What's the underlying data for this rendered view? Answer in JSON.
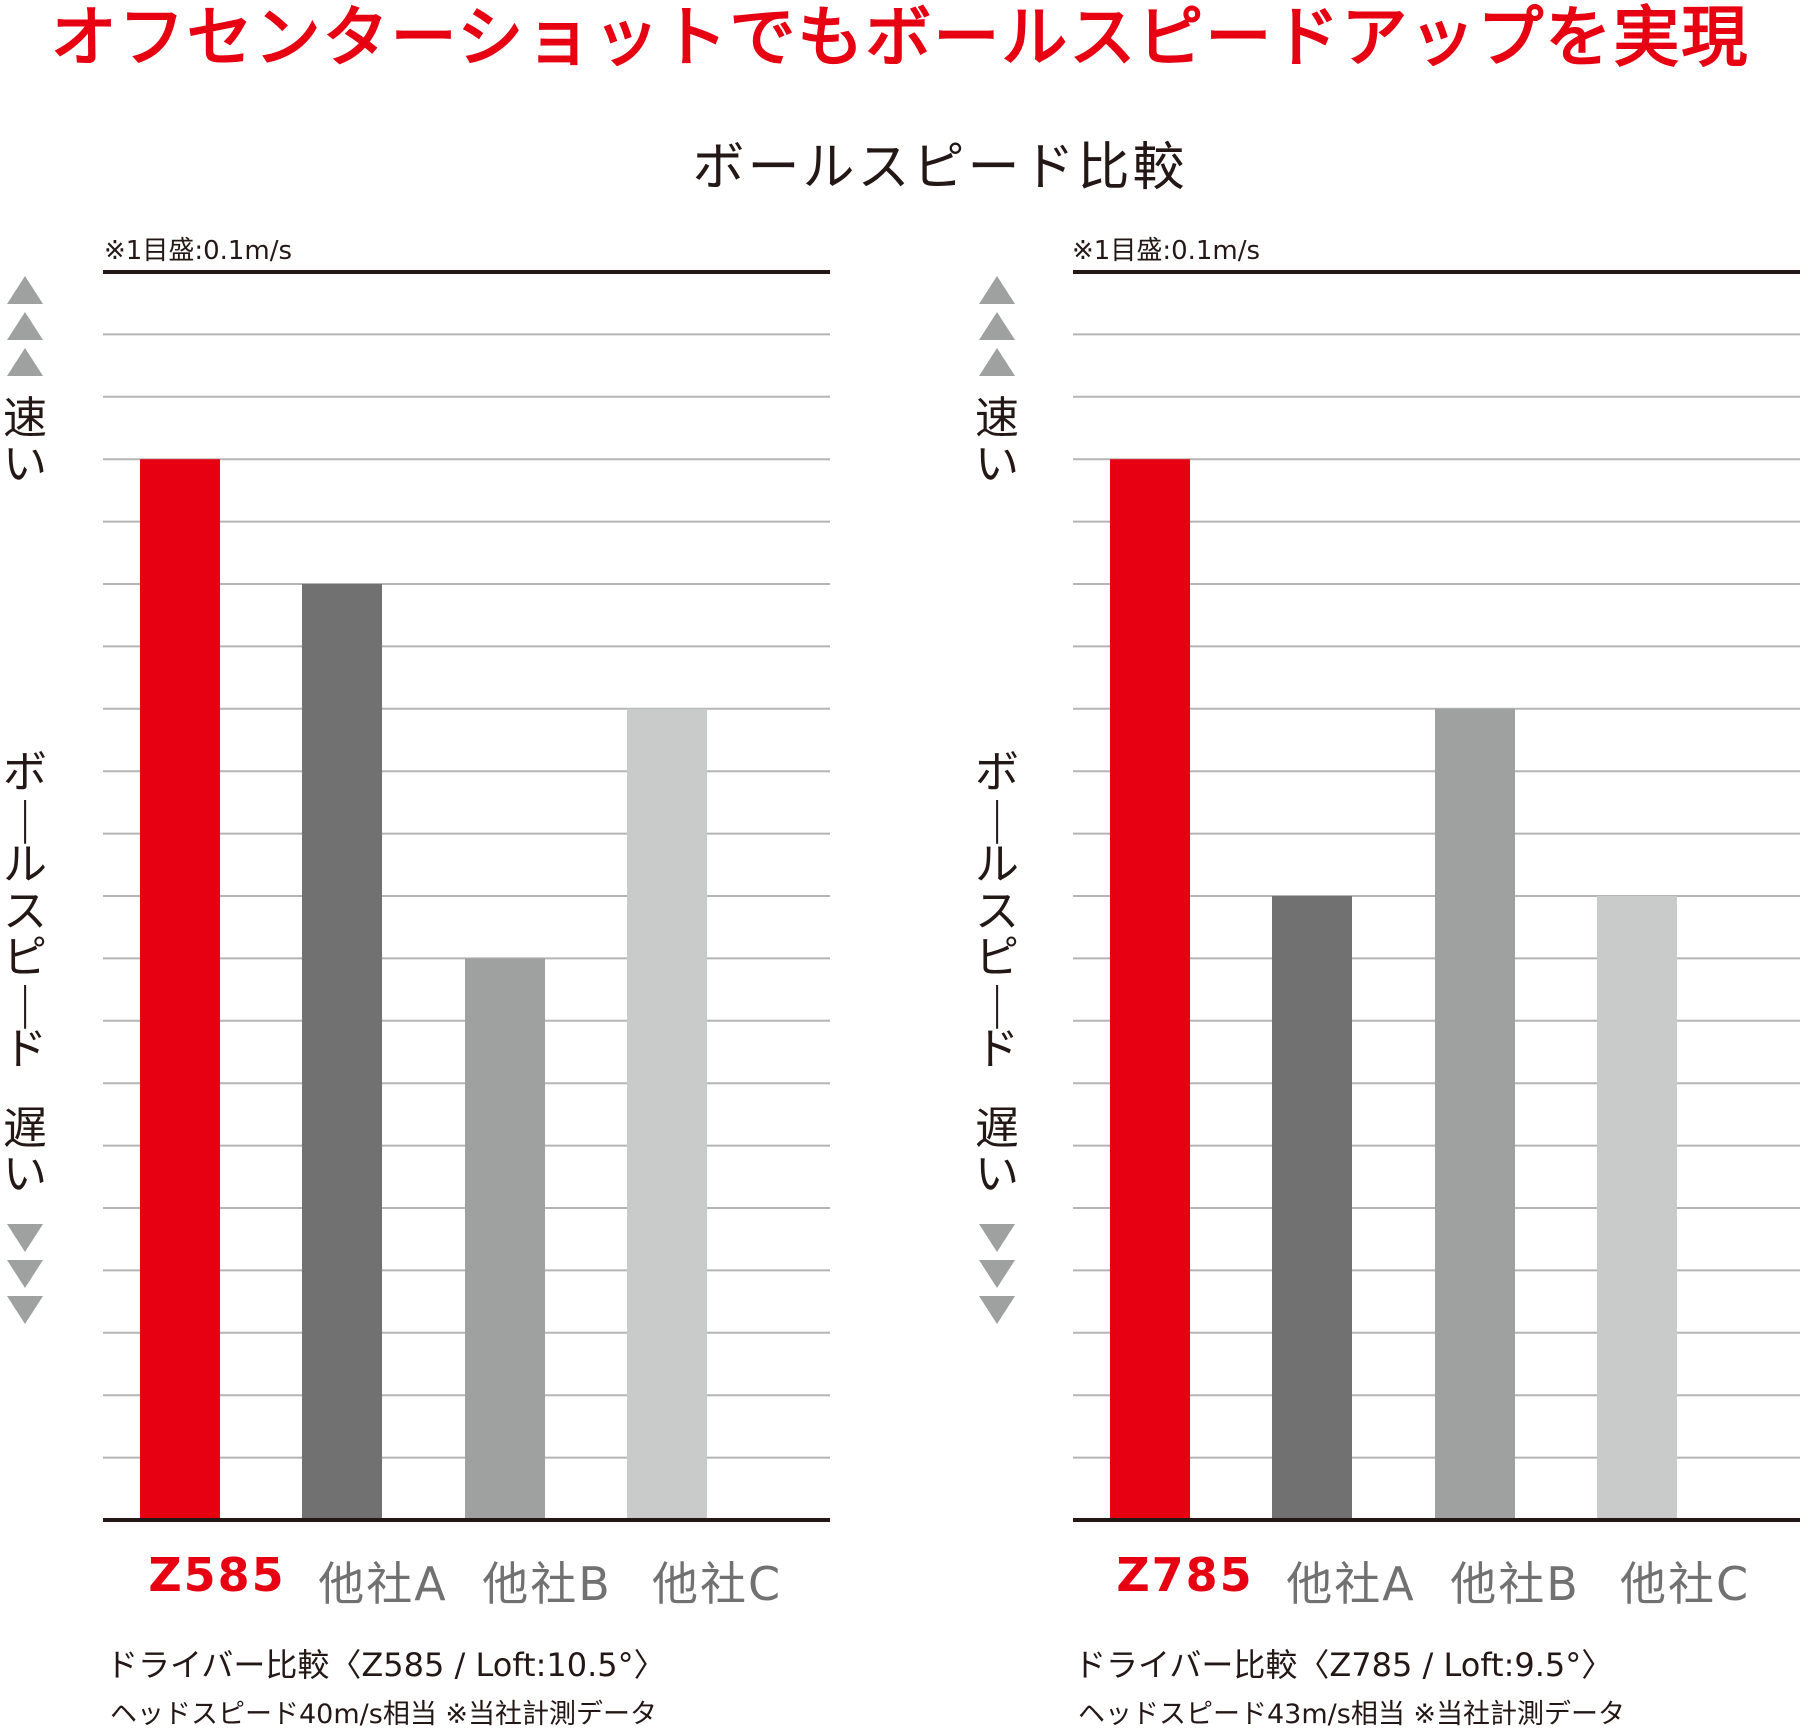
{
  "headline": "オフセンターショットでもボールスピードアップを実現",
  "subtitle": "ボールスピード比較",
  "colors": {
    "brand": "#e60012",
    "gridline": "#b5b5b6",
    "axis": "#231815",
    "arrow": "#9fa0a0"
  },
  "axis": {
    "fast_label": "速い",
    "slow_label": "遅い",
    "speed_label": "ボールスピード",
    "arrow_up": "up-triangles",
    "arrow_down": "down-triangles"
  },
  "chart_data": [
    {
      "type": "bar",
      "scale_note": "※1目盛:0.1m/s",
      "categories": [
        "Z585",
        "他社A",
        "他社B",
        "他社C"
      ],
      "values": [
        17,
        15,
        9,
        13
      ],
      "colors": [
        "#e60012",
        "#727171",
        "#9fa0a0",
        "#c9caca"
      ],
      "label_colors": [
        "#e60012",
        "#727171",
        "#727171",
        "#727171"
      ],
      "ylim": [
        0,
        20
      ],
      "grid": true,
      "note": "ドライバー比較〈Z585 / Loft:10.5°〉",
      "subnote": "ヘッドスピード40m/s相当 ※当社計測データ"
    },
    {
      "type": "bar",
      "scale_note": "※1目盛:0.1m/s",
      "categories": [
        "Z785",
        "他社A",
        "他社B",
        "他社C"
      ],
      "values": [
        17,
        10,
        13,
        10
      ],
      "colors": [
        "#e60012",
        "#727171",
        "#9fa0a0",
        "#c9caca"
      ],
      "label_colors": [
        "#e60012",
        "#727171",
        "#727171",
        "#727171"
      ],
      "ylim": [
        0,
        20
      ],
      "grid": true,
      "note": "ドライバー比較〈Z785 / Loft:9.5°〉",
      "subnote": "ヘッドスピード43m/s相当 ※当社計測データ"
    }
  ]
}
